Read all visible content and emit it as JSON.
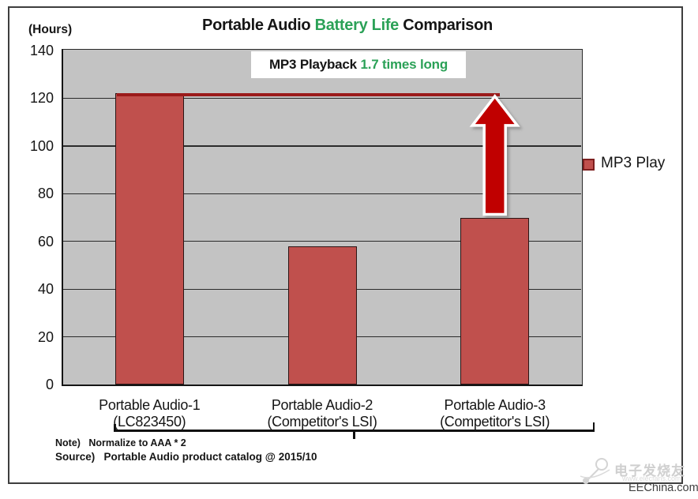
{
  "page": {
    "hours_label": "(Hours)",
    "title": {
      "pre": "Portable Audio ",
      "highlight": "Battery Life",
      "post": " Comparison"
    },
    "annotation": {
      "pre": "MP3 Playback ",
      "highlight": "1.7 times long"
    },
    "note": "Note)   Normalize to AAA * 2",
    "source": "Source)   Portable Audio product catalog @ 2015/10",
    "watermark": {
      "brand": "电子发烧友",
      "url": "www.elecfans.com",
      "site": "EEChina.com"
    },
    "colors": {
      "green": "#2ba157",
      "bar": "#c0504d",
      "bar_border": "#2b1515",
      "arrow": "#c00000",
      "reference_line": "#9b1b1b",
      "plot_bg": "#c3c3c3"
    }
  },
  "chart_data": {
    "type": "bar",
    "title": "Portable Audio Battery Life Comparison",
    "ylabel": "(Hours)",
    "ylim": [
      0,
      140
    ],
    "yticks": [
      140,
      120,
      100,
      80,
      60,
      40,
      20,
      0
    ],
    "grid": true,
    "legend_position": "right",
    "categories": [
      {
        "line1": "Portable Audio-1",
        "line2": "(LC823450)"
      },
      {
        "line1": "Portable Audio-2",
        "line2": "(Competitor's LSI)"
      },
      {
        "line1": "Portable Audio-3",
        "line2": "(Competitor's LSI)"
      }
    ],
    "series": [
      {
        "name": "MP3 Play",
        "values": [
          122,
          58,
          70
        ],
        "color": "#c0504d"
      }
    ],
    "annotation": "MP3 Playback 1.7 times long",
    "reference_line": {
      "value": 121.5,
      "color": "#9b1b1b"
    },
    "arrow": {
      "category_index": 2,
      "from_value": 70,
      "to_value": 121.5,
      "color": "#c00000"
    }
  }
}
